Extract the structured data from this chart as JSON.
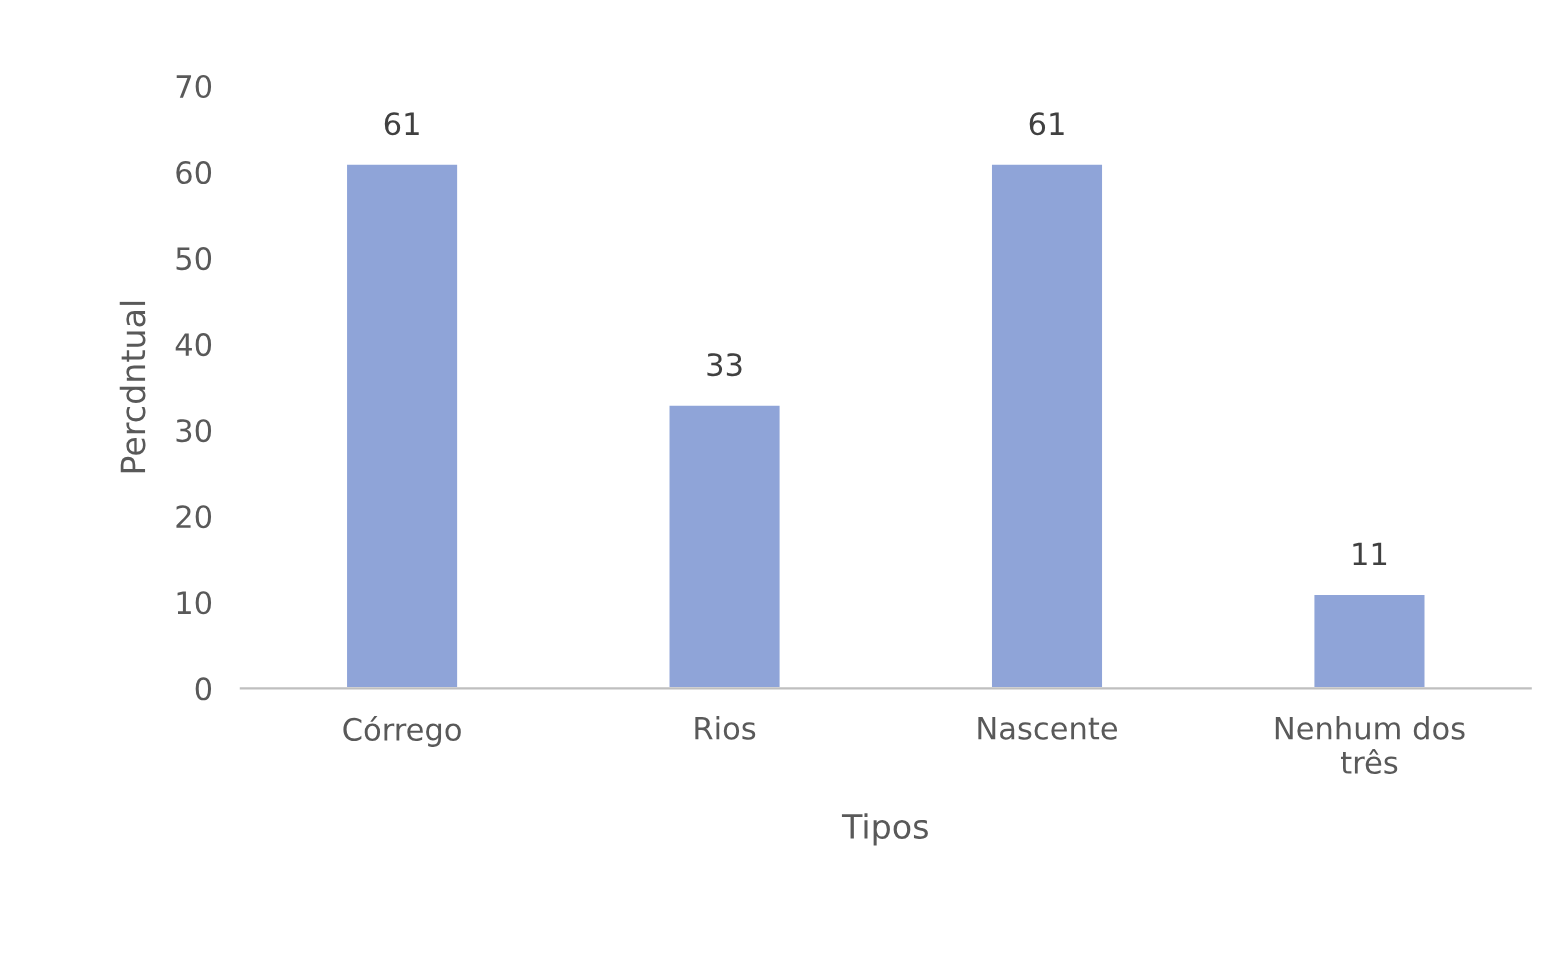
{
  "chart_data": {
    "type": "bar",
    "xlabel": "Tipos",
    "ylabel": "Percdntual",
    "categories": [
      "Córrego",
      "Rios",
      "Nascente",
      "Nenhum dos\ntrês"
    ],
    "values": [
      61,
      33,
      61,
      11
    ],
    "color": "#8fa4d8",
    "ylim": [
      0,
      70
    ],
    "yticks": [
      0,
      10,
      20,
      30,
      40,
      50,
      60,
      70
    ],
    "grid": false,
    "data_labels": true
  }
}
